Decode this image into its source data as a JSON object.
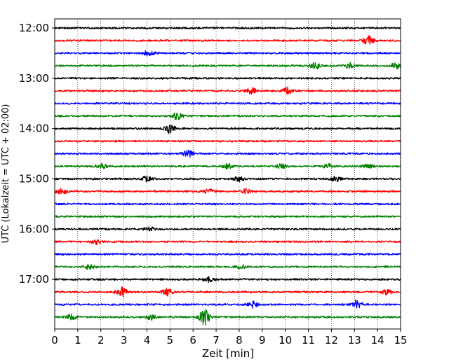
{
  "chart_data": {
    "type": "line",
    "subtype": "helicorder",
    "title": "",
    "xlabel": "Zeit  [min]",
    "ylabel": "UTC (Lokalzeit = UTC + 02:00)",
    "xlim": [
      0,
      15
    ],
    "x_ticks": [
      "0",
      "1",
      "2",
      "3",
      "4",
      "5",
      "6",
      "7",
      "8",
      "9",
      "10",
      "11",
      "12",
      "13",
      "14",
      "15"
    ],
    "grid": {
      "x": true,
      "y": false,
      "style": "dotted"
    },
    "y_tick_labels": [
      "12:00",
      "13:00",
      "14:00",
      "15:00",
      "16:00",
      "17:00"
    ],
    "colors": [
      "#000000",
      "#ff0000",
      "#0000ff",
      "#008000"
    ],
    "traces": [
      {
        "start": "12:00",
        "color": "#000000",
        "events": []
      },
      {
        "start": "12:15",
        "color": "#ff0000",
        "events": [
          {
            "x": 13.6,
            "amp": 3.0
          }
        ]
      },
      {
        "start": "12:30",
        "color": "#0000ff",
        "events": [
          {
            "x": 4.1,
            "amp": 1.8
          }
        ]
      },
      {
        "start": "12:45",
        "color": "#008000",
        "events": [
          {
            "x": 11.3,
            "amp": 2.0
          },
          {
            "x": 12.8,
            "amp": 1.6
          },
          {
            "x": 14.8,
            "amp": 1.8
          }
        ]
      },
      {
        "start": "13:00",
        "color": "#000000",
        "events": []
      },
      {
        "start": "13:15",
        "color": "#ff0000",
        "events": [
          {
            "x": 8.5,
            "amp": 1.8
          },
          {
            "x": 10.1,
            "amp": 2.0
          }
        ]
      },
      {
        "start": "13:30",
        "color": "#0000ff",
        "events": []
      },
      {
        "start": "13:45",
        "color": "#008000",
        "events": [
          {
            "x": 5.3,
            "amp": 2.0
          }
        ]
      },
      {
        "start": "14:00",
        "color": "#000000",
        "events": [
          {
            "x": 5.0,
            "amp": 3.0
          }
        ]
      },
      {
        "start": "14:15",
        "color": "#ff0000",
        "events": []
      },
      {
        "start": "14:30",
        "color": "#0000ff",
        "events": [
          {
            "x": 5.8,
            "amp": 2.2
          }
        ]
      },
      {
        "start": "14:45",
        "color": "#008000",
        "events": [
          {
            "x": 2.0,
            "amp": 1.6
          },
          {
            "x": 7.5,
            "amp": 1.4
          },
          {
            "x": 9.8,
            "amp": 1.4
          },
          {
            "x": 11.9,
            "amp": 1.4
          },
          {
            "x": 13.6,
            "amp": 1.2
          }
        ]
      },
      {
        "start": "15:00",
        "color": "#000000",
        "events": [
          {
            "x": 4.0,
            "amp": 1.6
          },
          {
            "x": 8.0,
            "amp": 1.6
          },
          {
            "x": 12.2,
            "amp": 1.5
          }
        ]
      },
      {
        "start": "15:15",
        "color": "#ff0000",
        "events": [
          {
            "x": 0.3,
            "amp": 1.8
          },
          {
            "x": 6.7,
            "amp": 1.4
          },
          {
            "x": 8.3,
            "amp": 1.6
          }
        ]
      },
      {
        "start": "15:30",
        "color": "#0000ff",
        "events": []
      },
      {
        "start": "15:45",
        "color": "#008000",
        "events": []
      },
      {
        "start": "16:00",
        "color": "#000000",
        "events": [
          {
            "x": 4.1,
            "amp": 1.3
          }
        ]
      },
      {
        "start": "16:15",
        "color": "#ff0000",
        "events": [
          {
            "x": 1.8,
            "amp": 1.4
          }
        ]
      },
      {
        "start": "16:30",
        "color": "#0000ff",
        "events": []
      },
      {
        "start": "16:45",
        "color": "#008000",
        "events": [
          {
            "x": 1.5,
            "amp": 1.4
          },
          {
            "x": 8.1,
            "amp": 1.2
          }
        ]
      },
      {
        "start": "17:00",
        "color": "#000000",
        "events": [
          {
            "x": 6.7,
            "amp": 1.6
          }
        ]
      },
      {
        "start": "17:15",
        "color": "#ff0000",
        "events": [
          {
            "x": 2.9,
            "amp": 3.0
          },
          {
            "x": 4.9,
            "amp": 2.2
          },
          {
            "x": 14.4,
            "amp": 1.5
          }
        ]
      },
      {
        "start": "17:30",
        "color": "#0000ff",
        "events": [
          {
            "x": 8.6,
            "amp": 2.0
          },
          {
            "x": 13.1,
            "amp": 2.4
          }
        ]
      },
      {
        "start": "17:45",
        "color": "#008000",
        "events": [
          {
            "x": 0.7,
            "amp": 1.6
          },
          {
            "x": 4.2,
            "amp": 1.6
          },
          {
            "x": 6.5,
            "amp": 5.0
          }
        ]
      }
    ]
  }
}
